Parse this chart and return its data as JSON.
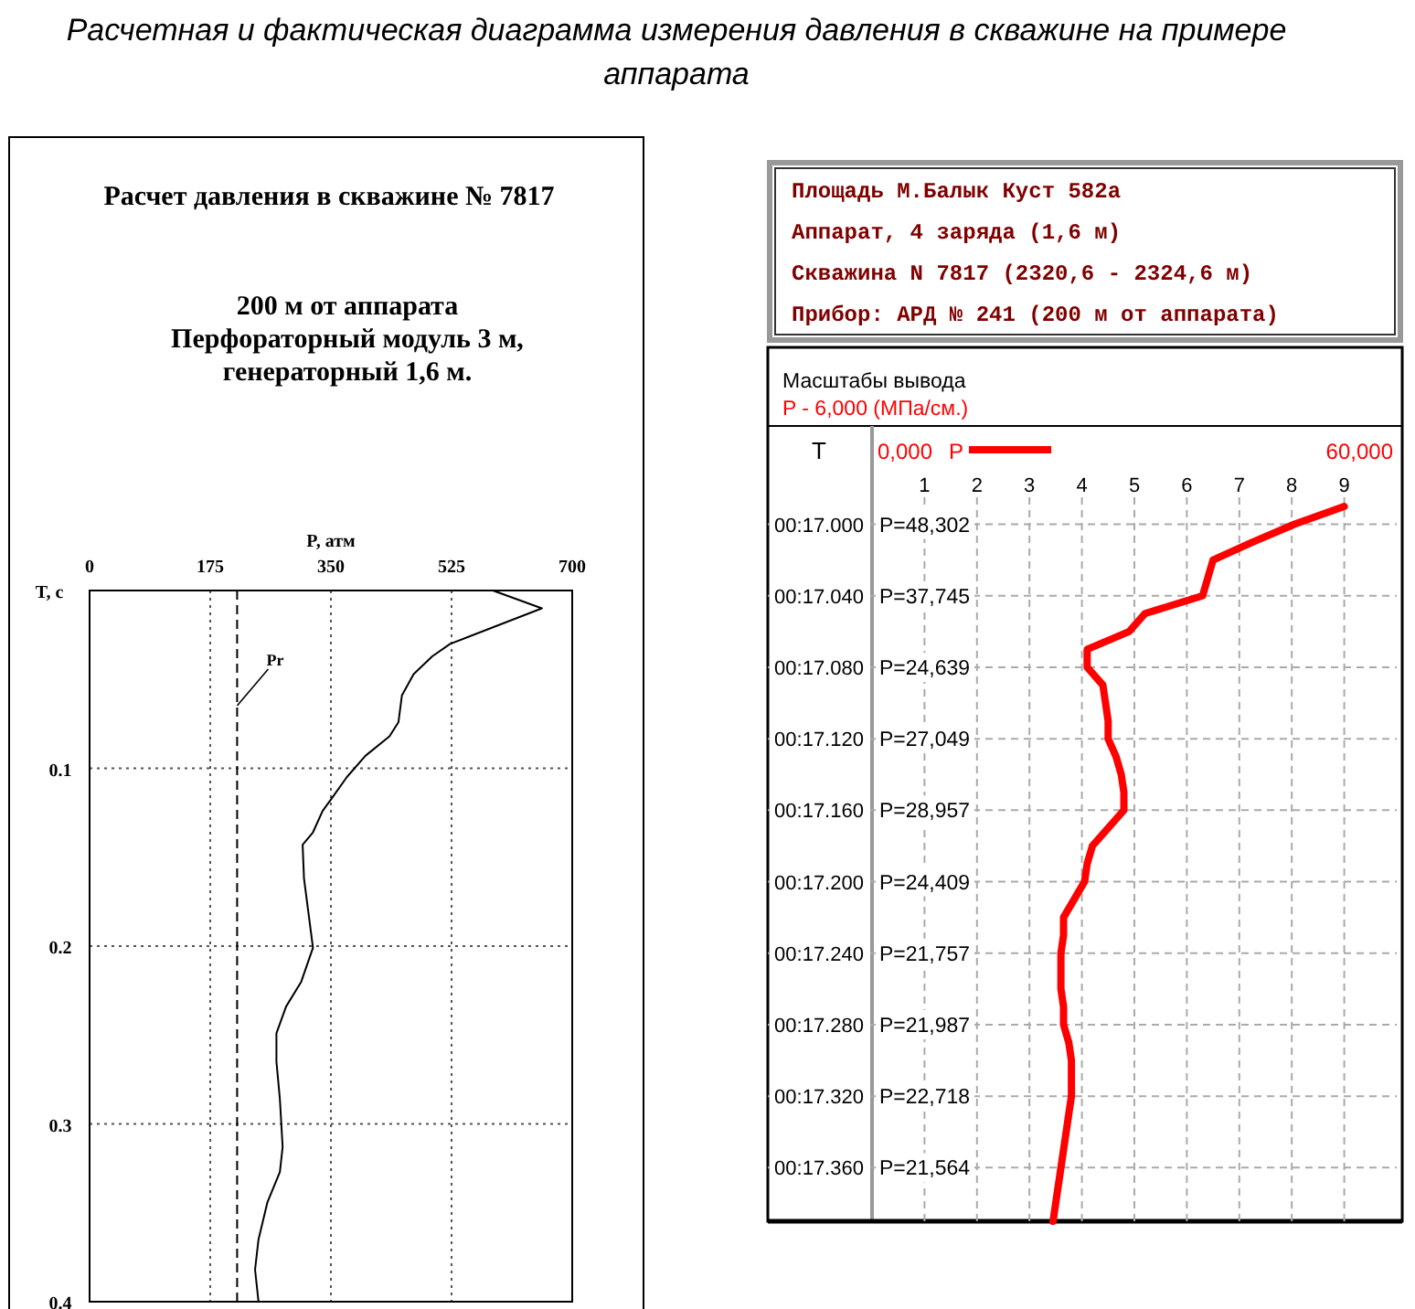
{
  "chart_data": [
    {
      "type": "line",
      "orientation": "horizontal",
      "title": "Расчетная и фактическая диаграмма измерения давления в скважине на примере аппарата",
      "subtitle": "Расчет давления в скважине № 7817",
      "annotations": [
        "200 м от аппарата",
        "Перфораторный модуль 3 м,",
        "генераторный 1,6 м."
      ],
      "xlabel": "P, атм",
      "ylabel": "T, c",
      "xlim": [
        0,
        700
      ],
      "xticks": [
        0,
        175,
        350,
        525,
        700
      ],
      "ylim": [
        0.4,
        0
      ],
      "yticks": [
        0.1,
        0.2,
        0.3,
        0.4
      ],
      "grid": true,
      "series": [
        {
          "color": "#000000",
          "x": [
            0,
            0.01,
            0.018,
            0.03,
            0.037,
            0.047,
            0.059,
            0.074,
            0.082,
            0.093,
            0.105,
            0.117,
            0.124,
            0.136,
            0.143,
            0.162,
            0.183,
            0.201,
            0.22,
            0.234,
            0.249,
            0.265,
            0.286,
            0.313,
            0.327,
            0.344,
            0.365,
            0.382,
            0.4
          ],
          "values": [
            585,
            656,
            603,
            523,
            497,
            470,
            453,
            448,
            435,
            400,
            373,
            351,
            338,
            324,
            309,
            311,
            318,
            324,
            307,
            285,
            271,
            271,
            276,
            280,
            276,
            258,
            245,
            240,
            245
          ]
        }
      ],
      "ref_lines": [
        {
          "axis": "x",
          "value": 214,
          "label": "Pr",
          "line_style": "dashed",
          "color": "#000000"
        }
      ]
    },
    {
      "type": "line",
      "orientation": "horizontal",
      "annotations": [
        "Площадь М.Балык Куст 582а",
        "Аппарат, 4 заряда (1,6 м)",
        "Скважина N 7817 (2320,6 - 2324,6 м)",
        "Прибор: АРД № 241 (200 м от аппарата)",
        "Масштабы вывода",
        "P - 6,000 (МПа/см.)",
        "0,000",
        "60,000",
        "P=48,302",
        "P=37,745",
        "P=24,639",
        "P=27,049",
        "P=28,957",
        "P=24,409",
        "P=21,757",
        "P=21,987",
        "P=22,718",
        "P=21,564"
      ],
      "ylabel": "T",
      "xlim": [
        0,
        10
      ],
      "xticks": [
        1,
        2,
        3,
        4,
        5,
        6,
        7,
        8,
        9
      ],
      "categories": [
        null,
        "00:17.000",
        null,
        null,
        null,
        "00:17.040",
        null,
        null,
        null,
        "00:17.080",
        null,
        null,
        null,
        "00:17.120",
        null,
        null,
        null,
        "00:17.160",
        null,
        null,
        null,
        "00:17.200",
        null,
        null,
        null,
        "00:17.240",
        null,
        null,
        null,
        "00:17.280",
        null,
        null,
        null,
        "00:17.320",
        null,
        null,
        null,
        "00:17.360",
        null,
        null,
        null
      ],
      "grid": true,
      "legend": "top",
      "series": [
        {
          "name": "P",
          "color": "#ff0000",
          "values": [
            9.0,
            8.05,
            7.25,
            6.5,
            6.4,
            6.3,
            5.2,
            4.9,
            4.1,
            4.1,
            4.4,
            4.45,
            4.5,
            4.5,
            4.65,
            4.75,
            4.8,
            4.8,
            4.5,
            4.2,
            4.1,
            4.05,
            3.85,
            3.65,
            3.65,
            3.6,
            3.6,
            3.6,
            3.65,
            3.65,
            3.75,
            3.8,
            3.8,
            3.8,
            3.75,
            3.7,
            3.65,
            3.6,
            3.55,
            3.5,
            3.45
          ]
        }
      ]
    }
  ]
}
